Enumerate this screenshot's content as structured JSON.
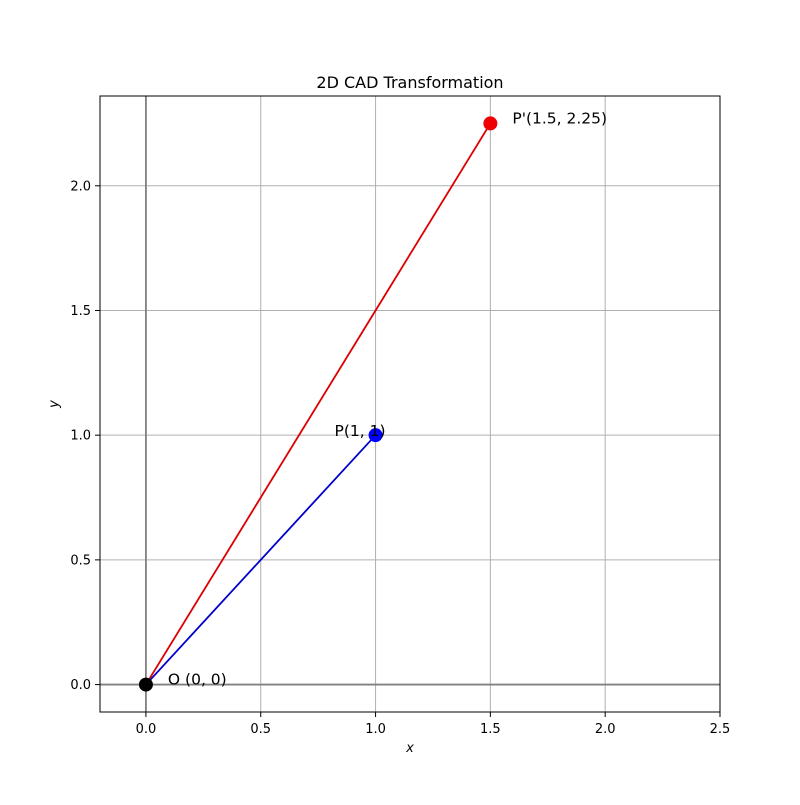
{
  "chart_data": {
    "type": "line",
    "title": "2D CAD Transformation",
    "xlabel": "x",
    "ylabel": "y",
    "xlim": [
      -0.2,
      2.5
    ],
    "ylim": [
      -0.11,
      2.36
    ],
    "xticks": [
      0.0,
      0.5,
      1.0,
      1.5,
      2.0,
      2.5
    ],
    "xtick_labels": [
      "0.0",
      "0.5",
      "1.0",
      "1.5",
      "2.0",
      "2.5"
    ],
    "yticks": [
      0.0,
      0.5,
      1.0,
      1.5,
      2.0
    ],
    "ytick_labels": [
      "0.0",
      "0.5",
      "1.0",
      "1.5",
      "2.0"
    ],
    "grid": true,
    "reference_lines": {
      "x": 0,
      "y": 0,
      "color": "#808080"
    },
    "segments": [
      {
        "from": [
          0,
          0
        ],
        "to": [
          1,
          1
        ],
        "color": "#0000cc"
      },
      {
        "from": [
          0,
          0
        ],
        "to": [
          1.5,
          2.25
        ],
        "color": "#dd0000"
      }
    ],
    "points": [
      {
        "label": "O (0, 0)",
        "x": 0,
        "y": 0,
        "color": "#000000",
        "label_side": "right"
      },
      {
        "label": "P(1, 1)",
        "x": 1,
        "y": 1,
        "color": "#0000ff",
        "label_side": "left"
      },
      {
        "label": "P'(1.5, 2.25)",
        "x": 1.5,
        "y": 2.25,
        "color": "#ee0000",
        "label_side": "right"
      }
    ]
  }
}
